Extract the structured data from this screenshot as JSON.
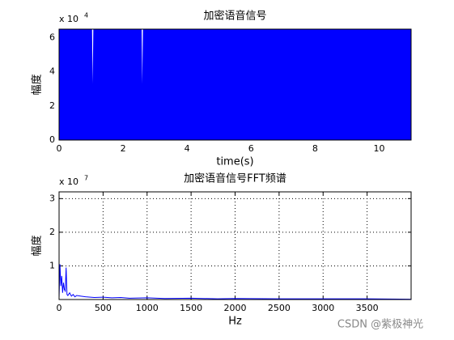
{
  "chart_data": [
    {
      "type": "area",
      "title": "加密语音信号",
      "xlabel": "time(s)",
      "ylabel": "幅度",
      "y_scale_label": {
        "base": "x 10",
        "exponent": "4"
      },
      "x": [
        0,
        1.03,
        1.05,
        1.07,
        2.58,
        2.6,
        2.62,
        11
      ],
      "upper": [
        6.5,
        6.5,
        3.3,
        6.5,
        6.5,
        3.3,
        6.5,
        6.5
      ],
      "lower": [
        0,
        0,
        0,
        0,
        0,
        0,
        0,
        0
      ],
      "color": "#0000ff",
      "xlim": [
        0,
        11
      ],
      "xticks": [
        0,
        2,
        4,
        6,
        8,
        10
      ],
      "ylim": [
        0,
        6.5
      ],
      "yticks": [
        0,
        2,
        4,
        6
      ],
      "grid": false
    },
    {
      "type": "line",
      "title": "加密语音信号FFT频谱",
      "xlabel": "Hz",
      "ylabel": "幅度",
      "y_scale_label": {
        "base": "x 10",
        "exponent": "7"
      },
      "x": [
        0,
        10,
        20,
        30,
        40,
        50,
        60,
        70,
        80,
        90,
        100,
        120,
        140,
        160,
        180,
        200,
        250,
        300,
        400,
        500,
        600,
        700,
        800,
        1000,
        1200,
        1500,
        1800,
        2000,
        2500,
        3000,
        3500,
        4000
      ],
      "values": [
        0.05,
        1.05,
        0.4,
        0.7,
        0.2,
        0.5,
        0.3,
        0.25,
        0.95,
        0.15,
        0.12,
        0.2,
        0.1,
        0.15,
        0.08,
        0.12,
        0.1,
        0.08,
        0.06,
        0.07,
        0.05,
        0.06,
        0.04,
        0.05,
        0.03,
        0.04,
        0.02,
        0.03,
        0.02,
        0.02,
        0.02,
        0.01
      ],
      "color": "#0000ff",
      "xlim": [
        0,
        4000
      ],
      "xticks": [
        0,
        500,
        1000,
        1500,
        2000,
        2500,
        3000,
        3500
      ],
      "ylim": [
        0,
        3.2
      ],
      "yticks": [
        1,
        2,
        3
      ],
      "grid": true
    }
  ],
  "watermark": "CSDN @紫极神光"
}
